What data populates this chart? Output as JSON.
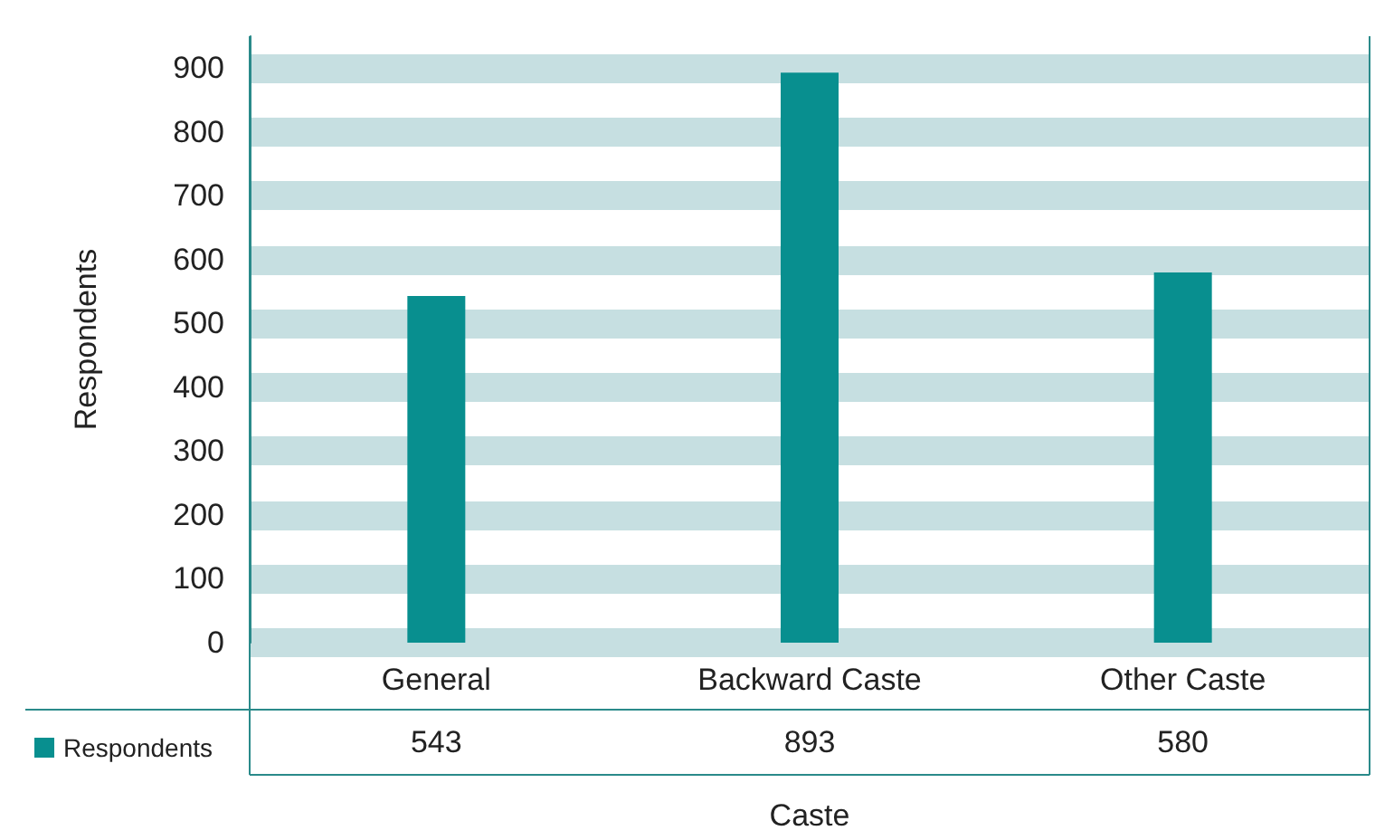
{
  "chart_data": {
    "type": "bar",
    "xlabel": "Caste",
    "ylabel": "Respondents",
    "categories": [
      "General",
      "Backward Caste",
      "Other Caste"
    ],
    "series": [
      {
        "name": "Respondents",
        "color": "#088f8f",
        "values": [
          543,
          893,
          580
        ]
      }
    ],
    "ylim": [
      0,
      950
    ],
    "yticks": [
      0,
      100,
      200,
      300,
      400,
      500,
      600,
      700,
      800,
      900
    ],
    "grid": "y",
    "legend": "bottom left",
    "data_labels": true
  }
}
